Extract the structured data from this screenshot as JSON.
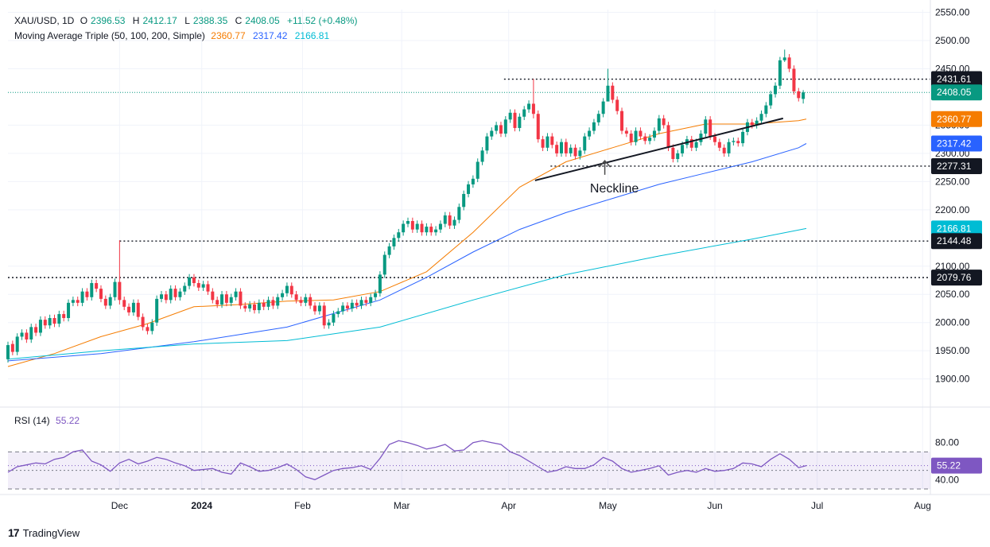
{
  "legend": {
    "symbol": "XAU/USD, 1D",
    "o_label": "O",
    "open": "2396.53",
    "h_label": "H",
    "high": "2412.17",
    "l_label": "L",
    "low": "2388.35",
    "c_label": "C",
    "close": "2408.05",
    "change": "+11.52 (+0.48%)",
    "ma_name": "Moving Average Triple (50, 100, 200, Simple)",
    "ma_values": [
      "2360.77",
      "2317.42",
      "2166.81"
    ],
    "rsi_name": "RSI (14)",
    "rsi_value": "55.22"
  },
  "annotation": {
    "neckline": "Neckline"
  },
  "brand": {
    "name": "TradingView",
    "logo_glyph": "17"
  },
  "colors": {
    "up": "#089981",
    "down": "#f23645",
    "ma50": "#f57c00",
    "ma100": "#2962ff",
    "ma200": "#00bcd4",
    "rsi": "#7e57c2",
    "grid": "#f0f3fa",
    "dark_label": "#131722"
  },
  "chart_data": {
    "type": "line",
    "title": "XAU/USD, 1D",
    "ylim": [
      1860,
      2555
    ],
    "price_ticks": [
      "2550.00",
      "2500.00",
      "2450.00",
      "2350.00",
      "2300.00",
      "2250.00",
      "2200.00",
      "2100.00",
      "2050.00",
      "2000.00",
      "1950.00",
      "1900.00"
    ],
    "price_tick_values": [
      2550,
      2500,
      2450,
      2350,
      2300,
      2250,
      2200,
      2100,
      2050,
      2000,
      1950,
      1900
    ],
    "x_ticks": [
      {
        "label": "Dec",
        "idx": 72
      },
      {
        "label": "2024",
        "idx": 125
      },
      {
        "label": "Feb",
        "idx": 190
      },
      {
        "label": "Mar",
        "idx": 254
      },
      {
        "label": "Apr",
        "idx": 323
      },
      {
        "label": "May",
        "idx": 387
      },
      {
        "label": "Jun",
        "idx": 456
      },
      {
        "label": "Jul",
        "idx": 522
      },
      {
        "label": "Aug",
        "idx": 590
      }
    ],
    "x_span": 595,
    "candles": [
      {
        "x": 0,
        "o": 1935,
        "c": 1960
      },
      {
        "x": 3,
        "o": 1962,
        "c": 1948
      },
      {
        "x": 6,
        "o": 1948,
        "c": 1975
      },
      {
        "x": 9,
        "o": 1975,
        "c": 1982
      },
      {
        "x": 12,
        "o": 1982,
        "c": 1970
      },
      {
        "x": 15,
        "o": 1970,
        "c": 1992
      },
      {
        "x": 18,
        "o": 1992,
        "c": 1982
      },
      {
        "x": 21,
        "o": 1982,
        "c": 2005
      },
      {
        "x": 24,
        "o": 2005,
        "c": 1995
      },
      {
        "x": 27,
        "o": 1995,
        "c": 2008
      },
      {
        "x": 30,
        "o": 2008,
        "c": 1998
      },
      {
        "x": 33,
        "o": 1998,
        "c": 2015
      },
      {
        "x": 36,
        "o": 2015,
        "c": 2008
      },
      {
        "x": 39,
        "o": 2008,
        "c": 2035
      },
      {
        "x": 42,
        "o": 2035,
        "c": 2040
      },
      {
        "x": 45,
        "o": 2040,
        "c": 2035
      },
      {
        "x": 48,
        "o": 2035,
        "c": 2055
      },
      {
        "x": 51,
        "o": 2055,
        "c": 2045
      },
      {
        "x": 54,
        "o": 2045,
        "c": 2070
      },
      {
        "x": 57,
        "o": 2070,
        "c": 2060
      },
      {
        "x": 60,
        "o": 2060,
        "c": 2042
      },
      {
        "x": 63,
        "o": 2042,
        "c": 2030
      },
      {
        "x": 66,
        "o": 2030,
        "c": 2045
      },
      {
        "x": 69,
        "o": 2045,
        "c": 2072
      },
      {
        "x": 72,
        "o": 2072,
        "c": 2040
      },
      {
        "x": 75,
        "o": 2040,
        "c": 2028
      },
      {
        "x": 78,
        "o": 2028,
        "c": 2018
      },
      {
        "x": 81,
        "o": 2018,
        "c": 2035
      },
      {
        "x": 84,
        "o": 2035,
        "c": 2010
      },
      {
        "x": 87,
        "o": 2010,
        "c": 1992
      },
      {
        "x": 90,
        "o": 1992,
        "c": 1985
      },
      {
        "x": 93,
        "o": 1985,
        "c": 2000
      },
      {
        "x": 96,
        "o": 2000,
        "c": 2042
      },
      {
        "x": 99,
        "o": 2042,
        "c": 2050
      },
      {
        "x": 102,
        "o": 2050,
        "c": 2040
      },
      {
        "x": 105,
        "o": 2040,
        "c": 2060
      },
      {
        "x": 108,
        "o": 2060,
        "c": 2045
      },
      {
        "x": 111,
        "o": 2045,
        "c": 2055
      },
      {
        "x": 114,
        "o": 2055,
        "c": 2065
      },
      {
        "x": 117,
        "o": 2065,
        "c": 2080
      },
      {
        "x": 120,
        "o": 2080,
        "c": 2070
      },
      {
        "x": 123,
        "o": 2070,
        "c": 2062
      },
      {
        "x": 126,
        "o": 2062,
        "c": 2068
      },
      {
        "x": 129,
        "o": 2068,
        "c": 2055
      },
      {
        "x": 132,
        "o": 2055,
        "c": 2040
      },
      {
        "x": 135,
        "o": 2040,
        "c": 2032
      },
      {
        "x": 138,
        "o": 2032,
        "c": 2050
      },
      {
        "x": 141,
        "o": 2050,
        "c": 2035
      },
      {
        "x": 144,
        "o": 2035,
        "c": 2045
      },
      {
        "x": 147,
        "o": 2045,
        "c": 2055
      },
      {
        "x": 150,
        "o": 2055,
        "c": 2030
      },
      {
        "x": 153,
        "o": 2030,
        "c": 2025
      },
      {
        "x": 156,
        "o": 2025,
        "c": 2032
      },
      {
        "x": 159,
        "o": 2032,
        "c": 2022
      },
      {
        "x": 162,
        "o": 2022,
        "c": 2035
      },
      {
        "x": 165,
        "o": 2035,
        "c": 2028
      },
      {
        "x": 168,
        "o": 2028,
        "c": 2040
      },
      {
        "x": 171,
        "o": 2040,
        "c": 2030
      },
      {
        "x": 174,
        "o": 2030,
        "c": 2045
      },
      {
        "x": 177,
        "o": 2045,
        "c": 2052
      },
      {
        "x": 180,
        "o": 2052,
        "c": 2065
      },
      {
        "x": 183,
        "o": 2065,
        "c": 2050
      },
      {
        "x": 186,
        "o": 2050,
        "c": 2040
      },
      {
        "x": 189,
        "o": 2040,
        "c": 2035
      },
      {
        "x": 192,
        "o": 2035,
        "c": 2045
      },
      {
        "x": 195,
        "o": 2045,
        "c": 2030
      },
      {
        "x": 198,
        "o": 2030,
        "c": 2020
      },
      {
        "x": 201,
        "o": 2020,
        "c": 2030
      },
      {
        "x": 204,
        "o": 2030,
        "c": 1995
      },
      {
        "x": 207,
        "o": 1995,
        "c": 2000
      },
      {
        "x": 210,
        "o": 2000,
        "c": 2015
      },
      {
        "x": 213,
        "o": 2015,
        "c": 2020
      },
      {
        "x": 216,
        "o": 2020,
        "c": 2030
      },
      {
        "x": 219,
        "o": 2030,
        "c": 2025
      },
      {
        "x": 222,
        "o": 2025,
        "c": 2035
      },
      {
        "x": 225,
        "o": 2035,
        "c": 2030
      },
      {
        "x": 228,
        "o": 2030,
        "c": 2040
      },
      {
        "x": 231,
        "o": 2040,
        "c": 2035
      },
      {
        "x": 234,
        "o": 2035,
        "c": 2045
      },
      {
        "x": 237,
        "o": 2045,
        "c": 2052
      },
      {
        "x": 240,
        "o": 2052,
        "c": 2085
      },
      {
        "x": 243,
        "o": 2085,
        "c": 2120
      },
      {
        "x": 246,
        "o": 2120,
        "c": 2135
      },
      {
        "x": 249,
        "o": 2135,
        "c": 2150
      },
      {
        "x": 252,
        "o": 2150,
        "c": 2160
      },
      {
        "x": 255,
        "o": 2160,
        "c": 2175
      },
      {
        "x": 258,
        "o": 2175,
        "c": 2180
      },
      {
        "x": 261,
        "o": 2180,
        "c": 2165
      },
      {
        "x": 264,
        "o": 2165,
        "c": 2175
      },
      {
        "x": 267,
        "o": 2175,
        "c": 2160
      },
      {
        "x": 270,
        "o": 2160,
        "c": 2170
      },
      {
        "x": 273,
        "o": 2170,
        "c": 2160
      },
      {
        "x": 276,
        "o": 2160,
        "c": 2165
      },
      {
        "x": 279,
        "o": 2165,
        "c": 2175
      },
      {
        "x": 282,
        "o": 2175,
        "c": 2190
      },
      {
        "x": 285,
        "o": 2190,
        "c": 2172
      },
      {
        "x": 288,
        "o": 2172,
        "c": 2182
      },
      {
        "x": 291,
        "o": 2182,
        "c": 2205
      },
      {
        "x": 294,
        "o": 2205,
        "c": 2228
      },
      {
        "x": 297,
        "o": 2228,
        "c": 2245
      },
      {
        "x": 300,
        "o": 2245,
        "c": 2255
      },
      {
        "x": 303,
        "o": 2255,
        "c": 2285
      },
      {
        "x": 306,
        "o": 2285,
        "c": 2305
      },
      {
        "x": 309,
        "o": 2305,
        "c": 2330
      },
      {
        "x": 312,
        "o": 2330,
        "c": 2340
      },
      {
        "x": 315,
        "o": 2340,
        "c": 2350
      },
      {
        "x": 318,
        "o": 2350,
        "c": 2335
      },
      {
        "x": 321,
        "o": 2335,
        "c": 2360
      },
      {
        "x": 324,
        "o": 2360,
        "c": 2372
      },
      {
        "x": 327,
        "o": 2372,
        "c": 2345
      },
      {
        "x": 330,
        "o": 2345,
        "c": 2365
      },
      {
        "x": 333,
        "o": 2365,
        "c": 2378
      },
      {
        "x": 336,
        "o": 2378,
        "c": 2388
      },
      {
        "x": 339,
        "o": 2388,
        "c": 2370
      },
      {
        "x": 342,
        "o": 2370,
        "c": 2325
      },
      {
        "x": 345,
        "o": 2325,
        "c": 2310
      },
      {
        "x": 348,
        "o": 2310,
        "c": 2330
      },
      {
        "x": 351,
        "o": 2330,
        "c": 2315
      },
      {
        "x": 354,
        "o": 2315,
        "c": 2300
      },
      {
        "x": 357,
        "o": 2300,
        "c": 2320
      },
      {
        "x": 360,
        "o": 2320,
        "c": 2300
      },
      {
        "x": 363,
        "o": 2300,
        "c": 2310
      },
      {
        "x": 366,
        "o": 2310,
        "c": 2295
      },
      {
        "x": 369,
        "o": 2295,
        "c": 2305
      },
      {
        "x": 372,
        "o": 2305,
        "c": 2330
      },
      {
        "x": 375,
        "o": 2330,
        "c": 2340
      },
      {
        "x": 378,
        "o": 2340,
        "c": 2355
      },
      {
        "x": 381,
        "o": 2355,
        "c": 2370
      },
      {
        "x": 384,
        "o": 2370,
        "c": 2392
      },
      {
        "x": 387,
        "o": 2392,
        "c": 2420
      },
      {
        "x": 390,
        "o": 2420,
        "c": 2395
      },
      {
        "x": 393,
        "o": 2395,
        "c": 2375
      },
      {
        "x": 396,
        "o": 2375,
        "c": 2340
      },
      {
        "x": 399,
        "o": 2340,
        "c": 2335
      },
      {
        "x": 402,
        "o": 2335,
        "c": 2320
      },
      {
        "x": 405,
        "o": 2320,
        "c": 2340
      },
      {
        "x": 408,
        "o": 2340,
        "c": 2330
      },
      {
        "x": 411,
        "o": 2330,
        "c": 2322
      },
      {
        "x": 414,
        "o": 2322,
        "c": 2328
      },
      {
        "x": 417,
        "o": 2328,
        "c": 2340
      },
      {
        "x": 420,
        "o": 2340,
        "c": 2362
      },
      {
        "x": 423,
        "o": 2362,
        "c": 2350
      },
      {
        "x": 426,
        "o": 2350,
        "c": 2310
      },
      {
        "x": 429,
        "o": 2310,
        "c": 2290
      },
      {
        "x": 432,
        "o": 2290,
        "c": 2300
      },
      {
        "x": 435,
        "o": 2300,
        "c": 2315
      },
      {
        "x": 438,
        "o": 2315,
        "c": 2325
      },
      {
        "x": 441,
        "o": 2325,
        "c": 2310
      },
      {
        "x": 444,
        "o": 2310,
        "c": 2320
      },
      {
        "x": 447,
        "o": 2320,
        "c": 2335
      },
      {
        "x": 450,
        "o": 2335,
        "c": 2360
      },
      {
        "x": 453,
        "o": 2360,
        "c": 2330
      },
      {
        "x": 456,
        "o": 2330,
        "c": 2320
      },
      {
        "x": 459,
        "o": 2320,
        "c": 2310
      },
      {
        "x": 462,
        "o": 2310,
        "c": 2300
      },
      {
        "x": 465,
        "o": 2300,
        "c": 2320
      },
      {
        "x": 468,
        "o": 2320,
        "c": 2322
      },
      {
        "x": 471,
        "o": 2322,
        "c": 2318
      },
      {
        "x": 474,
        "o": 2318,
        "c": 2338
      },
      {
        "x": 477,
        "o": 2338,
        "c": 2355
      },
      {
        "x": 480,
        "o": 2355,
        "c": 2350
      },
      {
        "x": 483,
        "o": 2350,
        "c": 2358
      },
      {
        "x": 486,
        "o": 2358,
        "c": 2370
      },
      {
        "x": 489,
        "o": 2370,
        "c": 2385
      },
      {
        "x": 492,
        "o": 2385,
        "c": 2405
      },
      {
        "x": 495,
        "o": 2405,
        "c": 2420
      },
      {
        "x": 498,
        "o": 2420,
        "c": 2465
      },
      {
        "x": 501,
        "o": 2465,
        "c": 2470
      },
      {
        "x": 504,
        "o": 2470,
        "c": 2450
      },
      {
        "x": 507,
        "o": 2450,
        "c": 2410
      },
      {
        "x": 510,
        "o": 2410,
        "c": 2398
      },
      {
        "x": 513,
        "o": 2396.53,
        "c": 2408.05
      }
    ],
    "wicks": [
      {
        "x": 72,
        "h": 2146,
        "l": 2032
      },
      {
        "x": 339,
        "h": 2432,
        "l": 2362
      },
      {
        "x": 387,
        "h": 2450,
        "l": 2412
      },
      {
        "x": 501,
        "h": 2484,
        "l": 2462
      },
      {
        "x": 513,
        "h": 2412.17,
        "l": 2388.35
      }
    ],
    "series": [
      {
        "name": "MA 50",
        "x": [
          0,
          30,
          60,
          90,
          120,
          150,
          180,
          210,
          240,
          270,
          300,
          330,
          360,
          390,
          420,
          450,
          480,
          510,
          515
        ],
        "values": [
          1922,
          1945,
          1975,
          1998,
          2028,
          2032,
          2038,
          2040,
          2055,
          2090,
          2160,
          2240,
          2285,
          2310,
          2335,
          2352,
          2352,
          2358,
          2360.77
        ]
      },
      {
        "name": "MA 100",
        "x": [
          0,
          60,
          120,
          180,
          240,
          270,
          300,
          330,
          360,
          390,
          420,
          450,
          480,
          510,
          515
        ],
        "values": [
          1932,
          1945,
          1966,
          1992,
          2040,
          2080,
          2125,
          2165,
          2195,
          2220,
          2245,
          2265,
          2285,
          2310,
          2317.42
        ]
      },
      {
        "name": "MA 200",
        "x": [
          0,
          60,
          120,
          180,
          240,
          300,
          360,
          420,
          480,
          515
        ],
        "values": [
          1935,
          1950,
          1962,
          1968,
          1992,
          2040,
          2085,
          2118,
          2148,
          2166.81
        ]
      }
    ],
    "levels": [
      {
        "value": 2431.61,
        "label": "2431.61",
        "dotted_from_idx": 320
      },
      {
        "value": 2408.05,
        "label": "2408.05",
        "dotted_from_idx": 0
      },
      {
        "value": 2360.77,
        "label": "2360.77"
      },
      {
        "value": 2317.42,
        "label": "2317.42"
      },
      {
        "value": 2277.31,
        "label": "2277.31",
        "dotted_from_idx": 350
      },
      {
        "value": 2166.81,
        "label": "2166.81"
      },
      {
        "value": 2144.48,
        "label": "2144.48",
        "dotted_from_idx": 72
      },
      {
        "value": 2079.76,
        "label": "2079.76",
        "dotted_from_idx": 0
      }
    ],
    "neckline": {
      "from": {
        "x": 340,
        "y": 2252
      },
      "to": {
        "x": 500,
        "y": 2362
      }
    },
    "rsi": {
      "ylim": [
        30,
        90
      ],
      "ticks": [
        "80.00",
        "40.00"
      ],
      "tick_values": [
        80,
        40
      ],
      "band_top": 70,
      "band_bottom": 30,
      "mid": 50,
      "x": [
        0,
        6,
        12,
        18,
        24,
        30,
        36,
        42,
        48,
        54,
        60,
        66,
        72,
        78,
        84,
        90,
        96,
        102,
        108,
        114,
        120,
        126,
        132,
        138,
        144,
        150,
        156,
        162,
        168,
        174,
        180,
        186,
        192,
        198,
        204,
        210,
        216,
        222,
        228,
        234,
        240,
        246,
        252,
        258,
        264,
        270,
        276,
        282,
        288,
        294,
        300,
        306,
        312,
        318,
        324,
        330,
        336,
        342,
        348,
        354,
        360,
        366,
        372,
        378,
        384,
        390,
        396,
        402,
        408,
        414,
        420,
        426,
        432,
        438,
        444,
        450,
        456,
        462,
        468,
        474,
        480,
        486,
        492,
        498,
        504,
        510,
        515
      ],
      "values": [
        48,
        54,
        56,
        58,
        57,
        62,
        64,
        70,
        72,
        60,
        56,
        49,
        58,
        62,
        57,
        60,
        64,
        62,
        58,
        55,
        50,
        51,
        52,
        48,
        46,
        58,
        54,
        49,
        50,
        53,
        57,
        51,
        43,
        40,
        45,
        50,
        52,
        53,
        55,
        51,
        63,
        78,
        82,
        80,
        77,
        73,
        75,
        78,
        71,
        72,
        80,
        82,
        80,
        78,
        70,
        66,
        60,
        54,
        48,
        50,
        54,
        52,
        52,
        56,
        64,
        60,
        52,
        48,
        50,
        52,
        55,
        45,
        48,
        50,
        48,
        52,
        49,
        50,
        52,
        58,
        57,
        54,
        62,
        68,
        62,
        53,
        55.22
      ]
    }
  }
}
